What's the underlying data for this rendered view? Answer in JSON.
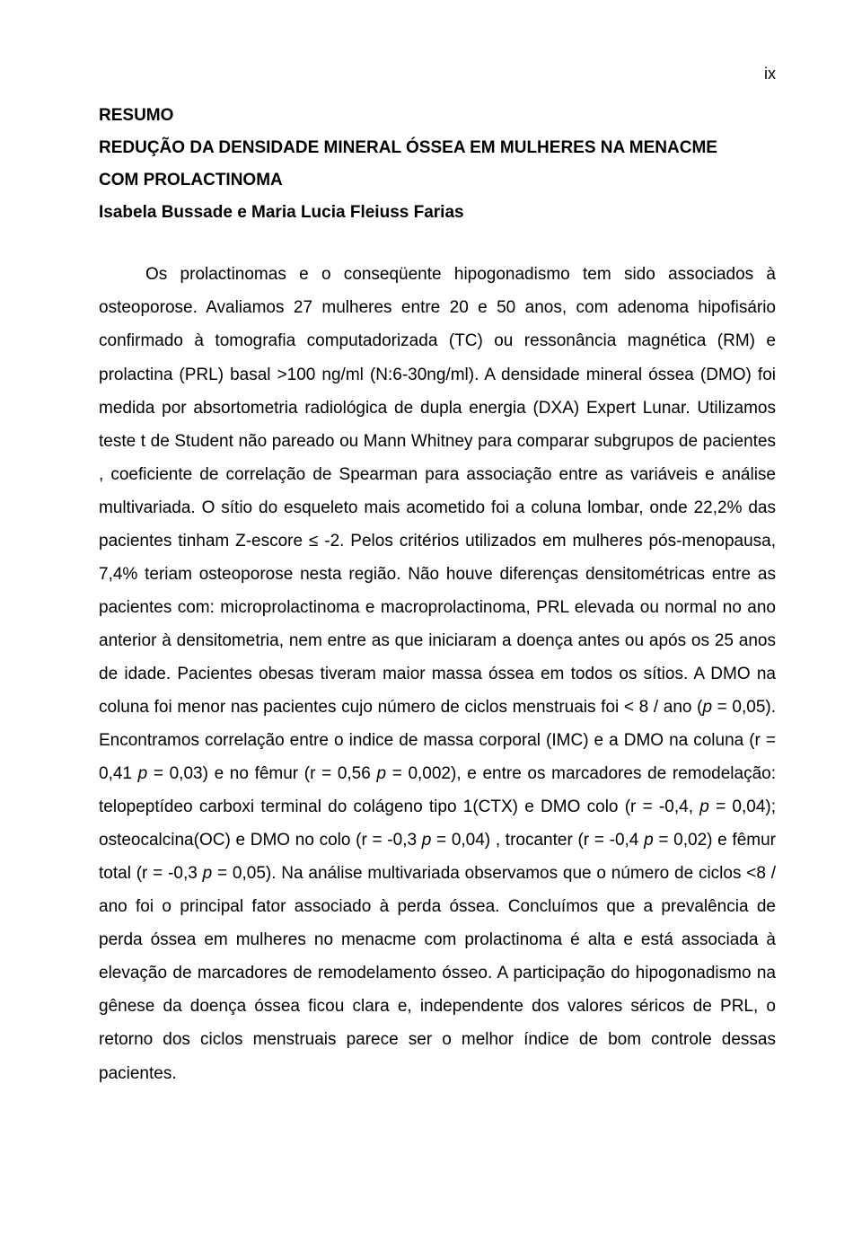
{
  "page_number": "ix",
  "heading": "RESUMO",
  "title_line1": "REDUÇÃO DA DENSIDADE MINERAL ÓSSEA EM MULHERES NA MENACME",
  "title_line2": "COM PROLACTINOMA",
  "authors": "Isabela Bussade e Maria Lucia Fleiuss Farias",
  "body_html": "Os prolactinomas e o conseqüente hipogonadismo tem sido associados à osteoporose. Avaliamos 27 mulheres entre 20 e 50 anos, com adenoma hipofisário confirmado à tomografia computadorizada (TC) ou ressonância magnética (RM) e prolactina (PRL) basal >100 ng/ml (N:6-30ng/ml). A densidade mineral óssea (DMO) foi medida por absortometria radiológica de dupla energia (DXA) Expert Lunar. Utilizamos teste t de Student não pareado ou Mann Whitney para comparar subgrupos de pacientes , coeficiente de correlação de Spearman para associação entre as variáveis e análise multivariada. O sítio do esqueleto mais acometido foi a coluna lombar, onde 22,2% das pacientes tinham Z-escore ≤ -2. Pelos critérios utilizados em mulheres pós-menopausa, 7,4% teriam osteoporose nesta região. Não houve diferenças densitométricas entre as pacientes com: microprolactinoma e macroprolactinoma, PRL elevada ou normal no ano anterior à densitometria, nem entre as que iniciaram a doença antes ou após os 25 anos de idade. Pacientes obesas tiveram maior massa óssea em todos os sítios. A DMO na coluna foi menor nas pacientes cujo número de ciclos menstruais foi < 8 / ano (<span class=\"italic\">p</span> = 0,05). Encontramos correlação entre o indice de massa corporal (IMC) e a DMO na coluna (r = 0,41 <span class=\"italic\">p</span> = 0,03) e no fêmur (r = 0,56 <span class=\"italic\">p</span> = 0,002), e entre os marcadores de remodelação: telopeptídeo carboxi terminal do colágeno tipo 1(CTX) e DMO colo (r = -0,4, <span class=\"italic\">p</span> = 0,04); osteocalcina(OC) e DMO no colo (r = -0,3 <span class=\"italic\">p</span> = 0,04) , trocanter (r = -0,4 <span class=\"italic\">p</span> = 0,02) e fêmur total (r = -0,3 <span class=\"italic\">p</span> = 0,05). Na análise multivariada observamos que o número de ciclos <8 / ano foi o principal fator associado à perda óssea. Concluímos que a prevalência de perda óssea em mulheres no menacme com prolactinoma é alta e está associada à elevação de marcadores de remodelamento ósseo. A participação do hipogonadismo na gênese da doença óssea ficou clara e, independente dos valores séricos de PRL, o retorno dos ciclos menstruais parece ser o melhor índice de bom controle dessas pacientes."
}
